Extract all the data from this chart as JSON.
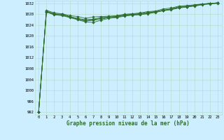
{
  "title": "Graphe pression niveau de la mer (hPa)",
  "bg_color": "#cceeff",
  "grid_color": "#b8ddd0",
  "line_color": "#2d6e2d",
  "marker_color": "#2d6e2d",
  "ylim": [
    991,
    1033
  ],
  "xlim": [
    -0.5,
    23.5
  ],
  "yticks": [
    992,
    996,
    1000,
    1004,
    1008,
    1012,
    1016,
    1020,
    1024,
    1028,
    1032
  ],
  "xticks": [
    0,
    1,
    2,
    3,
    4,
    5,
    6,
    7,
    8,
    9,
    10,
    11,
    12,
    13,
    14,
    15,
    16,
    17,
    18,
    19,
    20,
    21,
    22,
    23
  ],
  "xtick_labels": [
    "0",
    "1",
    "2",
    "3",
    "4",
    "5",
    "6",
    "7",
    "8",
    "9",
    "10",
    "11",
    "12",
    "13",
    "14",
    "15",
    "16",
    "17",
    "18",
    "19",
    "20",
    "21",
    "22",
    "23"
  ],
  "series": [
    [
      992,
      1029.5,
      1028.5,
      1028.2,
      1027.5,
      1027.2,
      1026.5,
      1027.0,
      1027.2,
      1027.3,
      1027.5,
      1028.0,
      1028.2,
      1028.5,
      1029.0,
      1029.2,
      1030.0,
      1030.3,
      1031.0,
      1031.2,
      1031.5,
      1031.8,
      1032.0,
      1032.2
    ],
    [
      992,
      1029.2,
      1028.2,
      1028.0,
      1027.2,
      1026.5,
      1026.0,
      1026.2,
      1026.8,
      1027.0,
      1027.2,
      1027.8,
      1028.0,
      1028.2,
      1028.5,
      1029.0,
      1029.5,
      1030.0,
      1030.8,
      1031.0,
      1031.3,
      1031.8,
      1032.0,
      1032.2
    ],
    [
      992,
      1029.0,
      1028.0,
      1027.8,
      1027.0,
      1026.2,
      1025.5,
      1025.8,
      1026.2,
      1026.8,
      1027.0,
      1027.5,
      1027.8,
      1028.0,
      1028.3,
      1028.8,
      1029.5,
      1029.8,
      1030.5,
      1030.8,
      1031.2,
      1031.7,
      1032.0,
      1032.2
    ],
    [
      992,
      1028.8,
      1027.8,
      1027.5,
      1026.8,
      1026.0,
      1025.2,
      1025.0,
      1025.8,
      1026.5,
      1026.8,
      1027.3,
      1027.7,
      1027.8,
      1028.2,
      1028.7,
      1029.3,
      1029.7,
      1030.3,
      1030.7,
      1031.0,
      1031.5,
      1031.8,
      1032.0
    ],
    [
      992,
      1029.0,
      1028.0,
      1027.8,
      1027.0,
      1026.2,
      1025.8,
      1026.0,
      1026.5,
      1027.0,
      1027.2,
      1027.7,
      1028.0,
      1028.2,
      1028.7,
      1029.0,
      1029.5,
      1029.8,
      1030.5,
      1030.8,
      1031.2,
      1031.7,
      1032.0,
      1032.2
    ]
  ]
}
